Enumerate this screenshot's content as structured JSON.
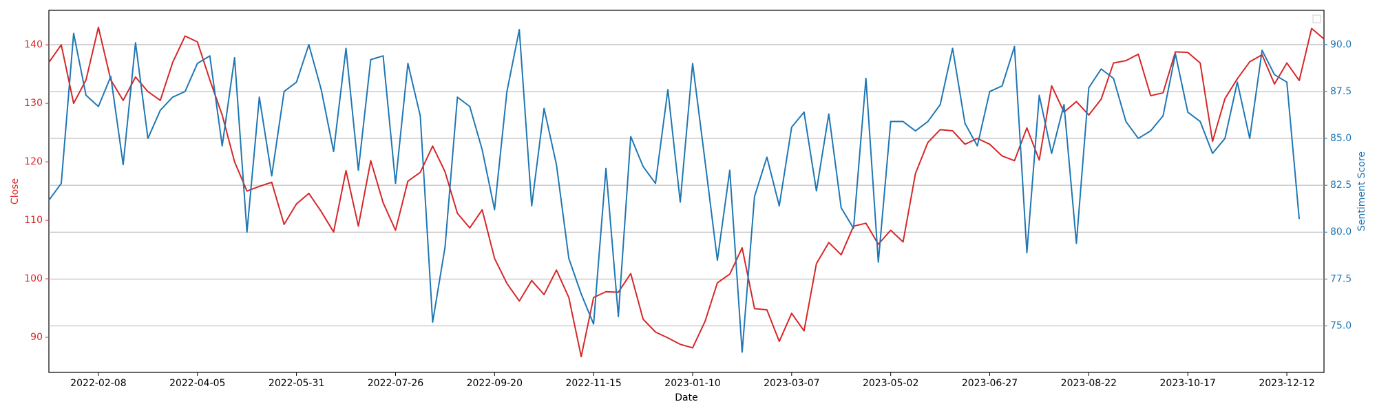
{
  "chart_data": {
    "type": "line",
    "xlabel": "Date",
    "ylabel": "Close",
    "y2label": "Sentiment Score",
    "x": [
      "2022-01-11",
      "2022-01-18",
      "2022-01-25",
      "2022-02-01",
      "2022-02-08",
      "2022-02-15",
      "2022-02-22",
      "2022-03-01",
      "2022-03-08",
      "2022-03-15",
      "2022-03-22",
      "2022-03-29",
      "2022-04-05",
      "2022-04-12",
      "2022-04-19",
      "2022-04-26",
      "2022-05-03",
      "2022-05-10",
      "2022-05-17",
      "2022-05-24",
      "2022-05-31",
      "2022-06-07",
      "2022-06-14",
      "2022-06-21",
      "2022-06-28",
      "2022-07-05",
      "2022-07-12",
      "2022-07-19",
      "2022-07-26",
      "2022-08-02",
      "2022-08-09",
      "2022-08-16",
      "2022-08-23",
      "2022-08-30",
      "2022-09-06",
      "2022-09-13",
      "2022-09-20",
      "2022-09-27",
      "2022-10-04",
      "2022-10-11",
      "2022-10-18",
      "2022-10-25",
      "2022-11-01",
      "2022-11-08",
      "2022-11-15",
      "2022-11-22",
      "2022-11-29",
      "2022-12-06",
      "2022-12-13",
      "2022-12-20",
      "2022-12-27",
      "2023-01-03",
      "2023-01-10",
      "2023-01-17",
      "2023-01-24",
      "2023-01-31",
      "2023-02-07",
      "2023-02-14",
      "2023-02-21",
      "2023-02-28",
      "2023-03-07",
      "2023-03-14",
      "2023-03-21",
      "2023-03-28",
      "2023-04-04",
      "2023-04-11",
      "2023-04-18",
      "2023-04-25",
      "2023-05-02",
      "2023-05-09",
      "2023-05-16",
      "2023-05-23",
      "2023-05-30",
      "2023-06-06",
      "2023-06-13",
      "2023-06-20",
      "2023-06-27",
      "2023-07-04",
      "2023-07-11",
      "2023-07-18",
      "2023-07-25",
      "2023-08-01",
      "2023-08-08",
      "2023-08-15",
      "2023-08-22",
      "2023-08-29",
      "2023-09-05",
      "2023-09-12",
      "2023-09-19",
      "2023-09-26",
      "2023-10-03",
      "2023-10-10",
      "2023-10-17",
      "2023-10-24",
      "2023-10-31",
      "2023-11-07",
      "2023-11-14",
      "2023-11-21",
      "2023-11-28",
      "2023-12-05",
      "2023-12-12",
      "2023-12-19",
      "2023-12-26",
      "2024-01-02"
    ],
    "series": [
      {
        "name": "Close",
        "color": "#d62728",
        "axis": "y",
        "values": [
          137,
          140,
          130,
          134,
          143,
          134,
          130.5,
          134.5,
          132,
          130.5,
          137,
          141.5,
          140.5,
          134,
          128,
          120,
          115,
          115.8,
          116.5,
          109.3,
          112.8,
          114.6,
          111.5,
          108,
          118.5,
          109,
          120.2,
          113,
          108.3,
          116.7,
          118.2,
          122.7,
          118.3,
          111.2,
          108.7,
          111.8,
          103.5,
          99.2,
          96.2,
          99.7,
          97.3,
          101.5,
          96.8,
          86.7,
          96.8,
          97.8,
          97.7,
          100.9,
          93.1,
          90.9,
          89.9,
          88.8,
          88.2,
          92.7,
          99.3,
          100.8,
          105.3,
          94.9,
          94.7,
          89.3,
          94.1,
          91.1,
          102.6,
          106.2,
          104.1,
          109,
          109.5,
          105.9,
          108.3,
          106.3,
          118,
          123.3,
          125.5,
          125.3,
          123,
          124,
          123,
          121,
          120.2,
          125.8,
          120.3,
          133,
          128.5,
          130.3,
          128,
          130.7,
          136.9,
          137.3,
          138.4,
          131.3,
          131.8,
          138.8,
          138.7,
          136.9,
          123.5,
          130.8,
          134.2,
          137.1,
          138.3,
          133.3,
          136.9,
          133.9,
          142.8,
          141
        ]
      },
      {
        "name": "Sentiment Score",
        "color": "#1f77b4",
        "axis": "y2",
        "values": [
          81.7,
          82.6,
          90.6,
          87.3,
          86.7,
          88.3,
          83.6,
          90.1,
          85,
          86.5,
          87.2,
          87.5,
          89,
          89.4,
          84.6,
          89.3,
          80,
          87.2,
          83,
          87.5,
          88,
          90,
          87.6,
          84.3,
          89.8,
          83.3,
          89.2,
          89.4,
          82.6,
          89,
          86.2,
          75.2,
          79.2,
          87.2,
          86.7,
          84.4,
          81.2,
          87.5,
          90.8,
          81.4,
          86.6,
          83.6,
          78.6,
          76.7,
          75.1,
          83.4,
          75.5,
          85.1,
          83.5,
          82.6,
          87.6,
          81.6,
          89,
          83.8,
          78.5,
          83.3,
          73.6,
          81.9,
          84,
          81.4,
          85.6,
          86.4,
          82.2,
          86.3,
          81.3,
          80.2,
          88.2,
          78.4,
          85.9,
          85.9,
          85.4,
          85.9,
          86.8,
          89.8,
          85.8,
          84.6,
          87.5,
          87.8,
          89.9,
          78.9,
          87.3,
          84.2,
          86.8,
          79.4,
          87.7,
          88.7,
          88.2,
          85.9,
          85,
          85.4,
          86.2,
          89.5,
          86.4,
          85.9,
          84.2,
          85,
          88,
          85,
          89.7,
          88.4,
          88,
          80.7,
          null,
          null
        ]
      }
    ],
    "xlim": [
      "2022-01-11",
      "2024-01-02"
    ],
    "xticks": [
      "2022-02-08",
      "2022-04-05",
      "2022-05-31",
      "2022-07-26",
      "2022-09-20",
      "2022-11-15",
      "2023-01-10",
      "2023-03-07",
      "2023-05-02",
      "2023-06-27",
      "2023-08-22",
      "2023-10-17",
      "2023-12-12"
    ],
    "ylim": [
      84,
      145.9
    ],
    "yticks": [
      90,
      100,
      110,
      120,
      130,
      140
    ],
    "y2lim": [
      72.52,
      91.83
    ],
    "y2ticks": [
      {
        "value": 75,
        "label": "75.0"
      },
      77.5,
      {
        "value": 80,
        "label": "80.0"
      },
      82.5,
      {
        "value": 85,
        "label": "85.0"
      },
      87.5,
      {
        "value": 90,
        "label": "90.0"
      }
    ],
    "grid": "y2"
  }
}
